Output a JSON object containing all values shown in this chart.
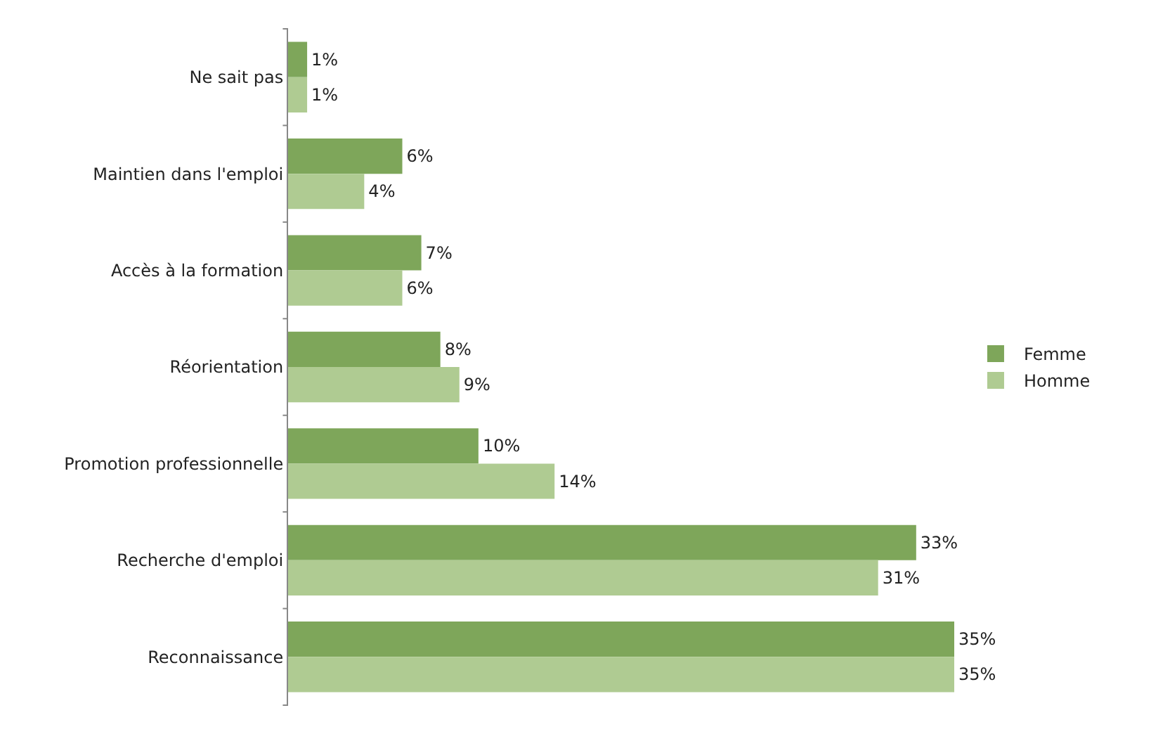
{
  "chart_data": {
    "type": "bar",
    "orientation": "horizontal",
    "categories": [
      "Ne sait pas",
      "Maintien dans l'emploi",
      "Accès à la formation",
      "Réorientation",
      "Promotion professionnelle",
      "Recherche d'emploi",
      "Reconnaissance"
    ],
    "series": [
      {
        "name": "Femme",
        "color": "#7ea65a",
        "values": [
          1,
          6,
          7,
          8,
          10,
          33,
          35
        ],
        "value_labels": [
          "1%",
          "6%",
          "7%",
          "8%",
          "10%",
          "33%",
          "35%"
        ]
      },
      {
        "name": "Homme",
        "color": "#afcb92",
        "values": [
          1,
          4,
          6,
          9,
          14,
          31,
          35
        ],
        "value_labels": [
          "1%",
          "4%",
          "6%",
          "9%",
          "14%",
          "31%",
          "35%"
        ]
      }
    ],
    "legend": "right"
  }
}
